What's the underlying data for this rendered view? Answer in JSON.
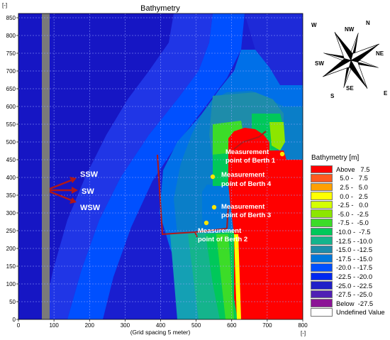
{
  "title": "Bathymetry",
  "y_unit_label": "[-]",
  "x_unit_label": "[-]",
  "x_axis_note": "(Grid spacing 5 meter)",
  "x_ticks": [
    "0",
    "100",
    "200",
    "300",
    "400",
    "500",
    "600",
    "700",
    "800"
  ],
  "y_ticks": [
    "0",
    "50",
    "100",
    "150",
    "200",
    "250",
    "300",
    "350",
    "400",
    "450",
    "500",
    "550",
    "600",
    "650",
    "700",
    "750",
    "800",
    "850"
  ],
  "compass": {
    "labels": [
      "N",
      "NW",
      "NE",
      "W",
      "E",
      "SW",
      "SE",
      "S"
    ]
  },
  "waves": [
    {
      "label": "SSW",
      "color": "#b01818"
    },
    {
      "label": "SW",
      "color": "#b01818"
    },
    {
      "label": "WSW",
      "color": "#b01818"
    }
  ],
  "annotations": [
    {
      "id": "berth1",
      "line1": "Measurement",
      "line2": "point of Berth 1"
    },
    {
      "id": "berth4",
      "line1": "Measurement",
      "line2": "point of Berth 4"
    },
    {
      "id": "berth3",
      "line1": "Measurement",
      "line2": "point of Berth 3"
    },
    {
      "id": "berth2",
      "line1": "Measurement",
      "line2": "point of Berth 2"
    }
  ],
  "legend": {
    "title": "Bathymetry [m]",
    "entries": [
      {
        "label": "Above   7.5",
        "color": "#ff0000"
      },
      {
        "label": "  5.0 -   7.5",
        "color": "#ff5a1e"
      },
      {
        "label": "  2.5 -   5.0",
        "color": "#ffa000"
      },
      {
        "label": "  0.0 -   2.5",
        "color": "#ffff00"
      },
      {
        "label": " -2.5 -   0.0",
        "color": "#d4ff00"
      },
      {
        "label": " -5.0 -  -2.5",
        "color": "#8ce600"
      },
      {
        "label": " -7.5 -  -5.0",
        "color": "#3cdc28"
      },
      {
        "label": "-10.0 -  -7.5",
        "color": "#00c85a"
      },
      {
        "label": "-12.5 - -10.0",
        "color": "#14b48c"
      },
      {
        "label": "-15.0 - -12.5",
        "color": "#1e8caa"
      },
      {
        "label": "-17.5 - -15.0",
        "color": "#0078dc"
      },
      {
        "label": "-20.0 - -17.5",
        "color": "#0050ff"
      },
      {
        "label": "-22.5 - -20.0",
        "color": "#0028f0"
      },
      {
        "label": "-25.0 - -22.5",
        "color": "#2020c8"
      },
      {
        "label": "-27.5 - -25.0",
        "color": "#5020b4"
      },
      {
        "label": "Below  -27.5",
        "color": "#8c1496"
      },
      {
        "label": "Undefined Value",
        "color": "#ffffff"
      }
    ]
  }
}
